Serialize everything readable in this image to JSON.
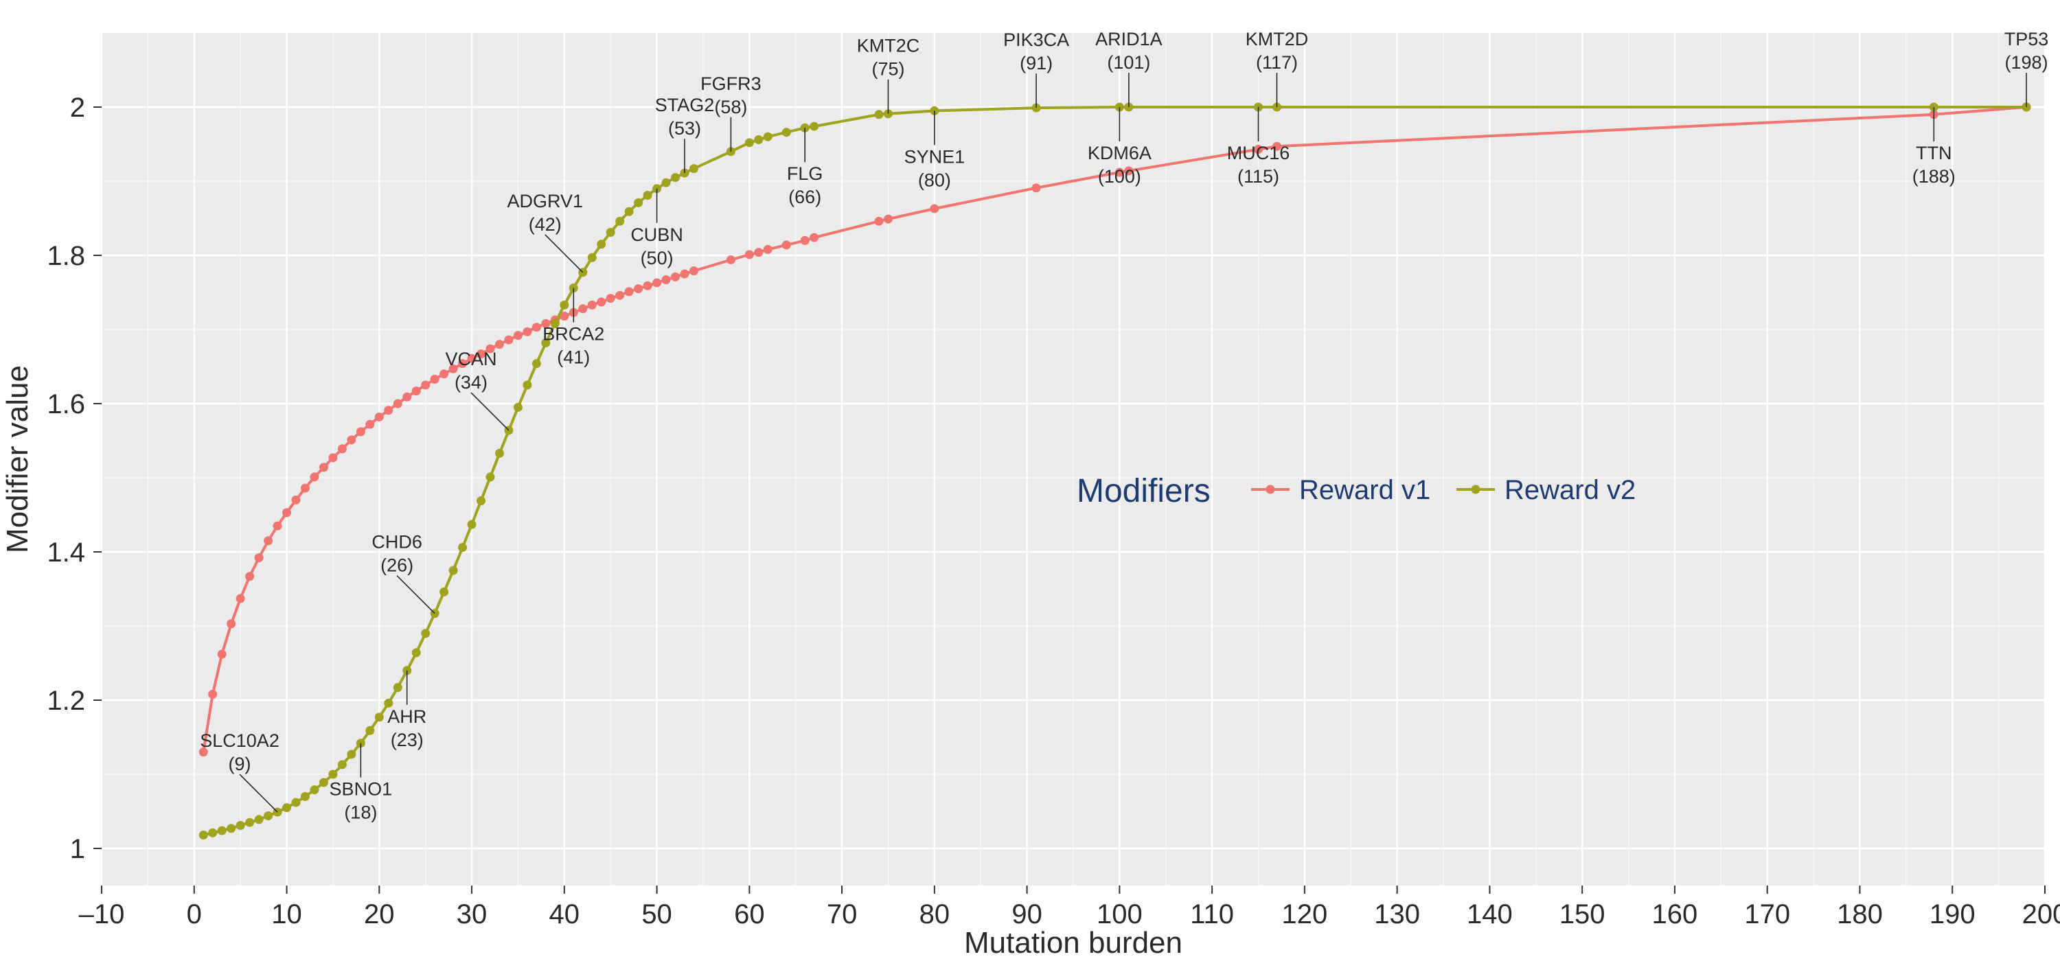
{
  "chart_data": {
    "type": "line",
    "xlabel": "Mutation burden",
    "ylabel": "Modifier value",
    "xlim": [
      -10,
      200
    ],
    "ylim": [
      0.95,
      2.1
    ],
    "xticks": [
      -10,
      0,
      10,
      20,
      30,
      40,
      50,
      60,
      70,
      80,
      90,
      100,
      110,
      120,
      130,
      140,
      150,
      160,
      170,
      180,
      190,
      200
    ],
    "yticks": [
      1,
      1.2,
      1.4,
      1.6,
      1.8,
      2
    ],
    "grid": true,
    "background": "#ebebeb",
    "legend": {
      "title": "Modifiers",
      "placement": "center-right"
    },
    "series": [
      {
        "name": "Reward v1",
        "color": "#f07470",
        "x": [
          1,
          2,
          3,
          4,
          5,
          6,
          7,
          8,
          9,
          10,
          11,
          12,
          13,
          14,
          15,
          16,
          17,
          18,
          19,
          20,
          21,
          22,
          23,
          24,
          25,
          26,
          27,
          28,
          29,
          30,
          31,
          32,
          33,
          34,
          35,
          36,
          37,
          38,
          39,
          40,
          41,
          42,
          43,
          44,
          45,
          46,
          47,
          48,
          49,
          50,
          51,
          52,
          53,
          54,
          58,
          60,
          61,
          62,
          64,
          66,
          67,
          74,
          75,
          80,
          91,
          100,
          101,
          115,
          117,
          188,
          198
        ],
        "values": [
          1.13,
          1.208,
          1.262,
          1.303,
          1.337,
          1.367,
          1.392,
          1.415,
          1.435,
          1.453,
          1.47,
          1.486,
          1.501,
          1.514,
          1.527,
          1.539,
          1.551,
          1.562,
          1.572,
          1.582,
          1.591,
          1.6,
          1.609,
          1.617,
          1.625,
          1.633,
          1.64,
          1.647,
          1.654,
          1.661,
          1.667,
          1.674,
          1.68,
          1.686,
          1.692,
          1.697,
          1.703,
          1.708,
          1.713,
          1.718,
          1.723,
          1.728,
          1.733,
          1.737,
          1.742,
          1.746,
          1.751,
          1.755,
          1.759,
          1.763,
          1.767,
          1.771,
          1.775,
          1.779,
          1.794,
          1.801,
          1.804,
          1.808,
          1.814,
          1.82,
          1.824,
          1.846,
          1.849,
          1.863,
          1.891,
          1.912,
          1.914,
          1.943,
          1.947,
          1.99,
          2.0
        ]
      },
      {
        "name": "Reward v2",
        "color": "#9fa31d",
        "x": [
          1,
          2,
          3,
          4,
          5,
          6,
          7,
          8,
          9,
          10,
          11,
          12,
          13,
          14,
          15,
          16,
          17,
          18,
          19,
          20,
          21,
          22,
          23,
          24,
          25,
          26,
          27,
          28,
          29,
          30,
          31,
          32,
          33,
          34,
          35,
          36,
          37,
          38,
          39,
          40,
          41,
          42,
          43,
          44,
          45,
          46,
          47,
          48,
          49,
          50,
          51,
          52,
          53,
          54,
          58,
          60,
          61,
          62,
          64,
          66,
          67,
          74,
          75,
          80,
          91,
          100,
          101,
          115,
          117,
          188,
          198
        ],
        "values": [
          1.018,
          1.021,
          1.024,
          1.027,
          1.031,
          1.035,
          1.039,
          1.044,
          1.049,
          1.055,
          1.062,
          1.07,
          1.079,
          1.089,
          1.1,
          1.113,
          1.127,
          1.142,
          1.159,
          1.177,
          1.196,
          1.217,
          1.24,
          1.264,
          1.29,
          1.317,
          1.346,
          1.375,
          1.406,
          1.437,
          1.469,
          1.501,
          1.533,
          1.564,
          1.595,
          1.625,
          1.654,
          1.682,
          1.708,
          1.733,
          1.756,
          1.777,
          1.797,
          1.815,
          1.831,
          1.846,
          1.859,
          1.871,
          1.881,
          1.89,
          1.898,
          1.905,
          1.911,
          1.917,
          1.94,
          1.952,
          1.956,
          1.96,
          1.966,
          1.972,
          1.974,
          1.99,
          1.991,
          1.995,
          1.999,
          2.0,
          2.0,
          2.0,
          2.0,
          2.0,
          2.0
        ]
      }
    ],
    "annotations": [
      {
        "gene": "SLC10A2",
        "count": "(9)",
        "x": 9,
        "series": 1,
        "dx": -55,
        "dy": -55
      },
      {
        "gene": "SBNO1",
        "count": "(18)",
        "x": 18,
        "series": 1,
        "dx": 0,
        "dy": 50
      },
      {
        "gene": "AHR",
        "count": "(23)",
        "x": 23,
        "series": 1,
        "dx": 0,
        "dy": 50
      },
      {
        "gene": "CHD6",
        "count": "(26)",
        "x": 26,
        "series": 1,
        "dx": -55,
        "dy": -55
      },
      {
        "gene": "VCAN",
        "count": "(34)",
        "x": 34,
        "series": 1,
        "dx": -55,
        "dy": -55
      },
      {
        "gene": "BRCA2",
        "count": "(41)",
        "x": 41,
        "series": 1,
        "dx": 0,
        "dy": 50
      },
      {
        "gene": "ADGRV1",
        "count": "(42)",
        "x": 42,
        "series": 1,
        "dx": -55,
        "dy": -55
      },
      {
        "gene": "CUBN",
        "count": "(50)",
        "x": 50,
        "series": 1,
        "dx": 0,
        "dy": 50
      },
      {
        "gene": "STAG2",
        "count": "(53)",
        "x": 53,
        "series": 1,
        "dx": 0,
        "dy": -50
      },
      {
        "gene": "FGFR3",
        "count": "(58)",
        "x": 58,
        "series": 1,
        "dx": 0,
        "dy": -50
      },
      {
        "gene": "FLG",
        "count": "(66)",
        "x": 66,
        "series": 1,
        "dx": 0,
        "dy": 50
      },
      {
        "gene": "KMT2C",
        "count": "(75)",
        "x": 75,
        "series": 1,
        "dx": 0,
        "dy": -50
      },
      {
        "gene": "SYNE1",
        "count": "(80)",
        "x": 80,
        "series": 1,
        "dx": 0,
        "dy": 50
      },
      {
        "gene": "PIK3CA",
        "count": "(91)",
        "x": 91,
        "series": 1,
        "dx": 0,
        "dy": -50
      },
      {
        "gene": "KDM6A",
        "count": "(100)",
        "x": 100,
        "series": 1,
        "dx": 0,
        "dy": 50
      },
      {
        "gene": "ARID1A",
        "count": "(101)",
        "x": 101,
        "series": 1,
        "dx": 0,
        "dy": -50
      },
      {
        "gene": "MUC16",
        "count": "(115)",
        "x": 115,
        "series": 1,
        "dx": 0,
        "dy": 50
      },
      {
        "gene": "KMT2D",
        "count": "(117)",
        "x": 117,
        "series": 1,
        "dx": 0,
        "dy": -50
      },
      {
        "gene": "TTN",
        "count": "(188)",
        "x": 188,
        "series": 1,
        "dx": 0,
        "dy": 50
      },
      {
        "gene": "TP53",
        "count": "(198)",
        "x": 198,
        "series": 1,
        "dx": 0,
        "dy": -50
      }
    ]
  }
}
